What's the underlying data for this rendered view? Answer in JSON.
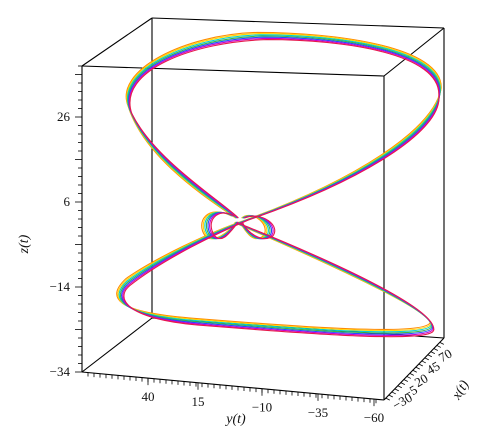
{
  "chart_data": {
    "type": "line",
    "projection": "3d",
    "title": "",
    "xlabel": "x(t)",
    "ylabel": "y(t)",
    "zlabel": "z(t)",
    "x_ticks": [
      "70",
      "45",
      "20",
      "−5",
      "−30"
    ],
    "y_ticks": [
      "40",
      "15",
      "−10",
      "−35",
      "−60"
    ],
    "z_ticks": [
      "26",
      "6",
      "−14",
      "−34"
    ],
    "zlim": [
      -34,
      38
    ],
    "grid": false,
    "legend": "none",
    "series": [
      {
        "color": "#ff8c00",
        "upper_loop_z": [
          12,
          36.5
        ],
        "lower_loop_z": [
          -25,
          -31
        ]
      },
      {
        "color": "#ffd700",
        "upper_loop_z": [
          12,
          36.2
        ],
        "lower_loop_z": [
          -24.8,
          -30.8
        ]
      },
      {
        "color": "#00cfcf",
        "upper_loop_z": [
          12,
          36.0
        ],
        "lower_loop_z": [
          -24.6,
          -30.6
        ]
      },
      {
        "color": "#3cb44b",
        "upper_loop_z": [
          12,
          35.8
        ],
        "lower_loop_z": [
          -24.4,
          -30.4
        ]
      },
      {
        "color": "#1f4fff",
        "upper_loop_z": [
          12,
          35.6
        ],
        "lower_loop_z": [
          -24.2,
          -30.2
        ]
      },
      {
        "color": "#cc00cc",
        "upper_loop_z": [
          12,
          35.4
        ],
        "lower_loop_z": [
          -24.0,
          -30.0
        ]
      },
      {
        "color": "#e6194b",
        "upper_loop_z": [
          12,
          35.2
        ],
        "lower_loop_z": [
          -23.8,
          -29.8
        ]
      }
    ]
  }
}
